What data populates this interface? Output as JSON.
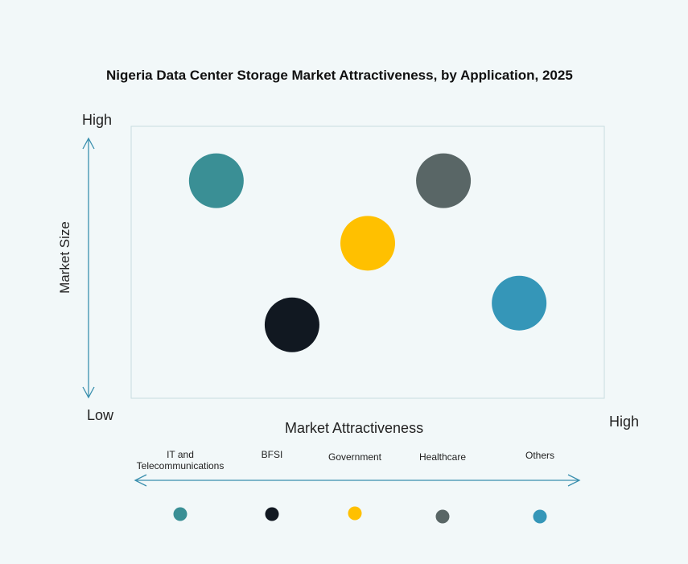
{
  "chart_data": {
    "type": "bubble-quadrant",
    "title": "Nigeria Data Center Storage Market Attractiveness,  by Application, 2025",
    "xlabel": "Market Attractiveness",
    "ylabel": "Market Size",
    "x_low_label": "Low",
    "x_high_label": "High",
    "y_high_label": "High",
    "y_low_label": "Low",
    "xlim": [
      0,
      1
    ],
    "ylim": [
      0,
      1
    ],
    "grid": false,
    "legend_position": "bottom",
    "series": [
      {
        "name": "IT and Telecommunications",
        "label_lines": [
          "IT and",
          "Telecommunications"
        ],
        "x": 0.18,
        "y": 0.8,
        "color": "#3a8f95"
      },
      {
        "name": "BFSI",
        "label_lines": [
          "BFSI"
        ],
        "x": 0.34,
        "y": 0.27,
        "color": "#111821"
      },
      {
        "name": "Government",
        "label_lines": [
          "Government"
        ],
        "x": 0.5,
        "y": 0.57,
        "color": "#ffc000"
      },
      {
        "name": "Healthcare",
        "label_lines": [
          "Healthcare"
        ],
        "x": 0.66,
        "y": 0.8,
        "color": "#596666"
      },
      {
        "name": "Others",
        "label_lines": [
          "Others"
        ],
        "x": 0.82,
        "y": 0.35,
        "color": "#3596b8"
      }
    ]
  }
}
